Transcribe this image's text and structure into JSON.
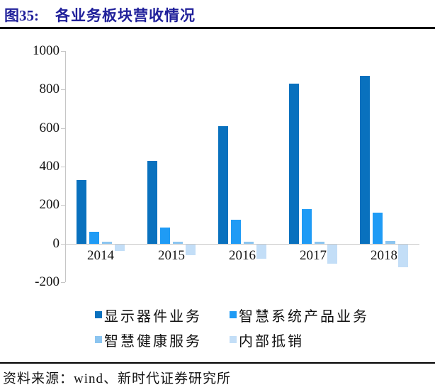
{
  "header": {
    "figure_label": "图35:",
    "title": "各业务板块营收情况"
  },
  "footer": {
    "source_text": "资料来源：wind、新时代证券研究所"
  },
  "chart_data": {
    "type": "bar",
    "title": "各业务板块营收情况",
    "categories": [
      "2014",
      "2015",
      "2016",
      "2017",
      "2018"
    ],
    "series": [
      {
        "name": "显示器件业务",
        "color": "#0971BE",
        "values": [
          330,
          430,
          610,
          830,
          870
        ]
      },
      {
        "name": "智慧系统产品业务",
        "color": "#1F9BF5",
        "values": [
          60,
          85,
          125,
          180,
          160
        ]
      },
      {
        "name": "智慧健康服务",
        "color": "#8CC5F0",
        "values": [
          10,
          10,
          8,
          10,
          12
        ]
      },
      {
        "name": "内部抵销",
        "color": "#C3DEF7",
        "values": [
          -35,
          -58,
          -74,
          -100,
          -118
        ]
      }
    ],
    "xlabel": "",
    "ylabel": "",
    "ylim": [
      -200,
      1000
    ],
    "yticks": [
      1000,
      800,
      600,
      400,
      200,
      0,
      -200
    ],
    "grid": false,
    "legend_position": "bottom"
  }
}
